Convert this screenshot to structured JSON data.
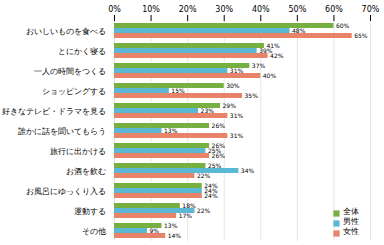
{
  "chart_data": {
    "type": "bar",
    "orientation": "horizontal",
    "categories": [
      "おいしいものを食べる",
      "とにかく寝る",
      "一人の時間をつくる",
      "ショッピングする",
      "好きなテレビ・ドラマを見る",
      "誰かに話を聞いてもらう",
      "旅行に出かける",
      "お酒を飲む",
      "お風呂にゆっくり入る",
      "運動する",
      "その他"
    ],
    "series": [
      {
        "name": "全体",
        "color": "#76b041",
        "values": [
          60,
          41,
          37,
          30,
          29,
          26,
          26,
          25,
          24,
          18,
          13
        ],
        "value_labels": [
          "60%",
          "41%",
          "37%",
          "30%",
          "29%",
          "26%",
          "26%",
          "25%",
          "24%",
          "18%",
          "13%"
        ]
      },
      {
        "name": "男性",
        "color": "#5ab8d4",
        "values": [
          48,
          39,
          31,
          15,
          23,
          13,
          25,
          34,
          24,
          22,
          9
        ],
        "value_labels": [
          "48%",
          "39%",
          "31%",
          "15%",
          "23%",
          "13%",
          "25%",
          "34%",
          "24%",
          "22%",
          "9%"
        ]
      },
      {
        "name": "女性",
        "color": "#e8836a",
        "values": [
          65,
          42,
          40,
          35,
          31,
          31,
          26,
          22,
          24,
          17,
          14
        ],
        "value_labels": [
          "65%",
          "42%",
          "40%",
          "35%",
          "31%",
          "31%",
          "26%",
          "22%",
          "24%",
          "17%",
          "14%"
        ]
      }
    ],
    "xlim": [
      0,
      70
    ],
    "xticks": [
      {
        "value": 0,
        "label": "0%"
      },
      {
        "value": 10,
        "label": "10%"
      },
      {
        "value": 20,
        "label": "20%"
      },
      {
        "value": 30,
        "label": "30%"
      },
      {
        "value": 40,
        "label": "40%"
      },
      {
        "value": 50,
        "label": "50%"
      },
      {
        "value": 60,
        "label": "60%"
      },
      {
        "value": 70,
        "label": "70%"
      }
    ],
    "grid": true,
    "data_labels": true,
    "legend": "lower right"
  }
}
